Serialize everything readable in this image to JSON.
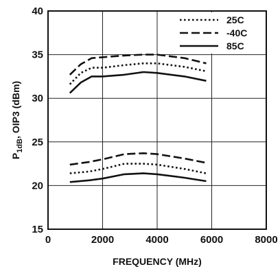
{
  "chart_data": {
    "type": "line",
    "title": "",
    "xlabel": "FREQUENCY (MHz)",
    "ylabel_main": "P",
    "ylabel_sub": "1dB",
    "ylabel_rest": ", OIP3 (dBm)",
    "xlim": [
      0,
      8000
    ],
    "ylim": [
      15,
      40
    ],
    "xticks": [
      0,
      2000,
      4000,
      6000,
      8000
    ],
    "xtick_labels": [
      "0",
      "2000",
      "4000",
      "6000",
      "8000"
    ],
    "yticks": [
      15,
      20,
      25,
      30,
      35,
      40
    ],
    "ytick_labels": [
      "15",
      "20",
      "25",
      "30",
      "35",
      "40"
    ],
    "grid": true,
    "legend_position": "top-right",
    "legend": [
      {
        "label": "25C",
        "dash": "dotted"
      },
      {
        "label": "-40C",
        "dash": "dashed"
      },
      {
        "label": "85C",
        "dash": "solid"
      }
    ],
    "series": [
      {
        "group": "OIP3",
        "temp": "25C",
        "dash": "dotted",
        "x": [
          800,
          1200,
          1600,
          2000,
          2800,
          3500,
          4000,
          5000,
          5800
        ],
        "y": [
          31.6,
          32.9,
          33.5,
          33.5,
          33.8,
          34.0,
          34.0,
          33.6,
          33.1
        ]
      },
      {
        "group": "OIP3",
        "temp": "-40C",
        "dash": "dashed",
        "x": [
          800,
          1200,
          1600,
          2000,
          2800,
          3500,
          4000,
          5000,
          5800
        ],
        "y": [
          32.7,
          33.9,
          34.6,
          34.7,
          34.9,
          35.0,
          35.0,
          34.6,
          34.0
        ]
      },
      {
        "group": "OIP3",
        "temp": "85C",
        "dash": "solid",
        "x": [
          800,
          1200,
          1600,
          2000,
          2800,
          3500,
          4000,
          5000,
          5800
        ],
        "y": [
          30.6,
          31.8,
          32.5,
          32.5,
          32.7,
          33.0,
          32.9,
          32.5,
          32.0
        ]
      },
      {
        "group": "P1dB",
        "temp": "25C",
        "dash": "dotted",
        "x": [
          800,
          1500,
          2000,
          2800,
          3500,
          4000,
          5000,
          5800
        ],
        "y": [
          21.4,
          21.6,
          21.9,
          22.5,
          22.5,
          22.4,
          21.9,
          21.4
        ]
      },
      {
        "group": "P1dB",
        "temp": "-40C",
        "dash": "dashed",
        "x": [
          800,
          1500,
          2000,
          2800,
          3500,
          4000,
          5000,
          5800
        ],
        "y": [
          22.4,
          22.7,
          23.0,
          23.6,
          23.7,
          23.6,
          23.1,
          22.6
        ]
      },
      {
        "group": "P1dB",
        "temp": "85C",
        "dash": "solid",
        "x": [
          800,
          1500,
          2000,
          2800,
          3500,
          4000,
          5000,
          5800
        ],
        "y": [
          20.4,
          20.6,
          20.8,
          21.3,
          21.4,
          21.3,
          20.9,
          20.5
        ]
      }
    ]
  }
}
